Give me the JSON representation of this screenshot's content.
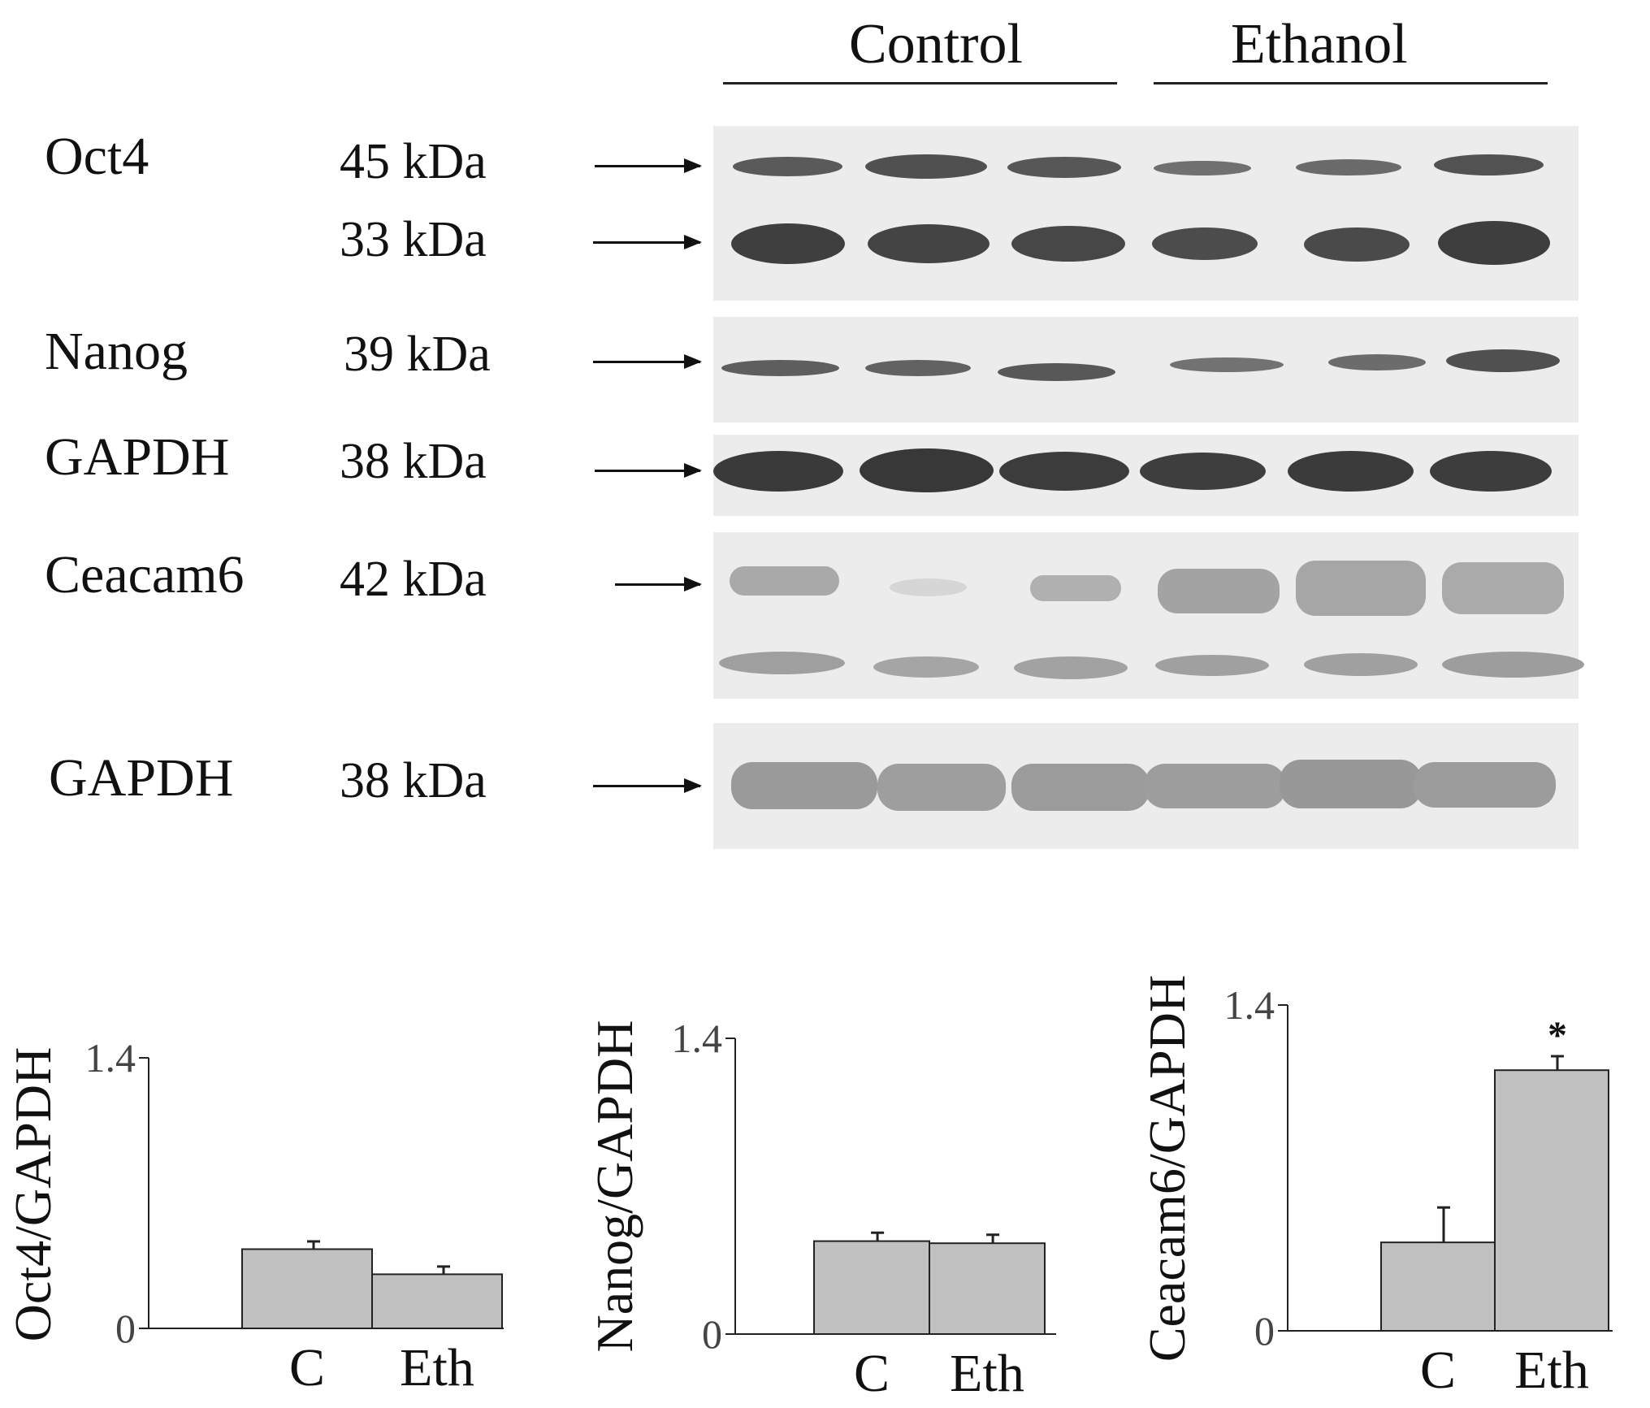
{
  "blot": {
    "groups": [
      "Control",
      "Ethanol"
    ],
    "rows": [
      {
        "protein": "Oct4",
        "kda": "45 kDa"
      },
      {
        "protein": "",
        "kda": "33 kDa"
      },
      {
        "protein": "Nanog",
        "kda": "39 kDa"
      },
      {
        "protein": "GAPDH",
        "kda": "38 kDa"
      },
      {
        "protein": "Ceacam6",
        "kda": "42 kDa"
      },
      {
        "protein": "GAPDH",
        "kda": "38 kDa"
      }
    ],
    "colors": {
      "panel": "#ececec",
      "band_dark": "#3c3c3c",
      "band_mid": "#5a5a5a",
      "band_light": "#9a9a9a"
    }
  },
  "chart_data": [
    {
      "type": "bar",
      "ylabel": "Oct4/GAPDH",
      "categories": [
        "C",
        "Eth"
      ],
      "values": [
        0.41,
        0.28
      ],
      "errors": [
        0.04,
        0.04
      ],
      "ylim": [
        0,
        1.4
      ],
      "yticks": [
        "0",
        "1.4"
      ],
      "bar_color": "#c0c0c0",
      "significance": [
        "",
        ""
      ]
    },
    {
      "type": "bar",
      "ylabel": "Nanog/GAPDH",
      "categories": [
        "C",
        "Eth"
      ],
      "values": [
        0.44,
        0.43
      ],
      "errors": [
        0.04,
        0.04
      ],
      "ylim": [
        0,
        1.4
      ],
      "yticks": [
        "0",
        "1.4"
      ],
      "bar_color": "#c0c0c0",
      "significance": [
        "",
        ""
      ]
    },
    {
      "type": "bar",
      "ylabel": "Ceacam6/GAPDH",
      "categories": [
        "C",
        "Eth"
      ],
      "values": [
        0.38,
        1.12
      ],
      "errors": [
        0.15,
        0.06
      ],
      "ylim": [
        0,
        1.4
      ],
      "yticks": [
        "0",
        "1.4"
      ],
      "bar_color": "#c0c0c0",
      "significance": [
        "",
        "*"
      ]
    }
  ]
}
